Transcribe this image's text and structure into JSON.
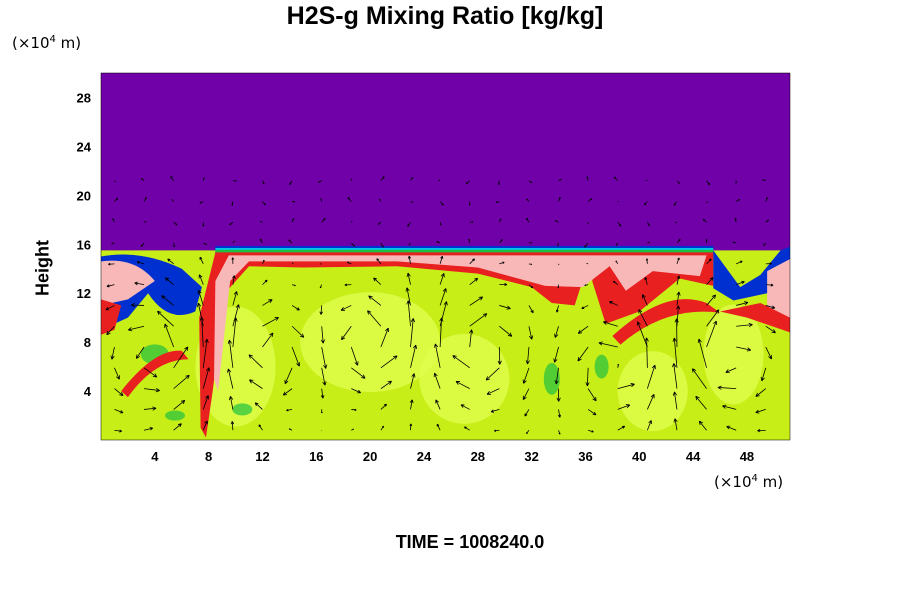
{
  "chart_data": {
    "type": "heatmap",
    "title": "H2S-g Mixing Ratio [kg/kg]",
    "ylabel": "Height",
    "y_unit": "(×10⁴ m)",
    "x_unit": "(×10⁴ m)",
    "x_unit_parts": [
      "(×10",
      "4",
      " m)"
    ],
    "y_unit_parts": [
      "(×10",
      "4",
      " m)"
    ],
    "xlim": [
      0,
      51.2
    ],
    "ylim": [
      0,
      30
    ],
    "x_ticks": [
      4,
      8,
      12,
      16,
      20,
      24,
      28,
      32,
      36,
      40,
      44,
      48
    ],
    "y_ticks": [
      4,
      8,
      12,
      16,
      20,
      24,
      28
    ],
    "colors": {
      "background_top": "#7000a8",
      "bulk": "#c8ee18",
      "bulk_light": "#e0ff50",
      "band_red": "#e82020",
      "band_pink": "#f8b8b8",
      "edge_blue": "#0030d0",
      "edge_cyan": "#00c8e8",
      "edge_green": "#20c040"
    },
    "boundary_height": 15.5,
    "vectors_present": true
  },
  "footer": {
    "time_label": "TIME = 1008240.0"
  }
}
